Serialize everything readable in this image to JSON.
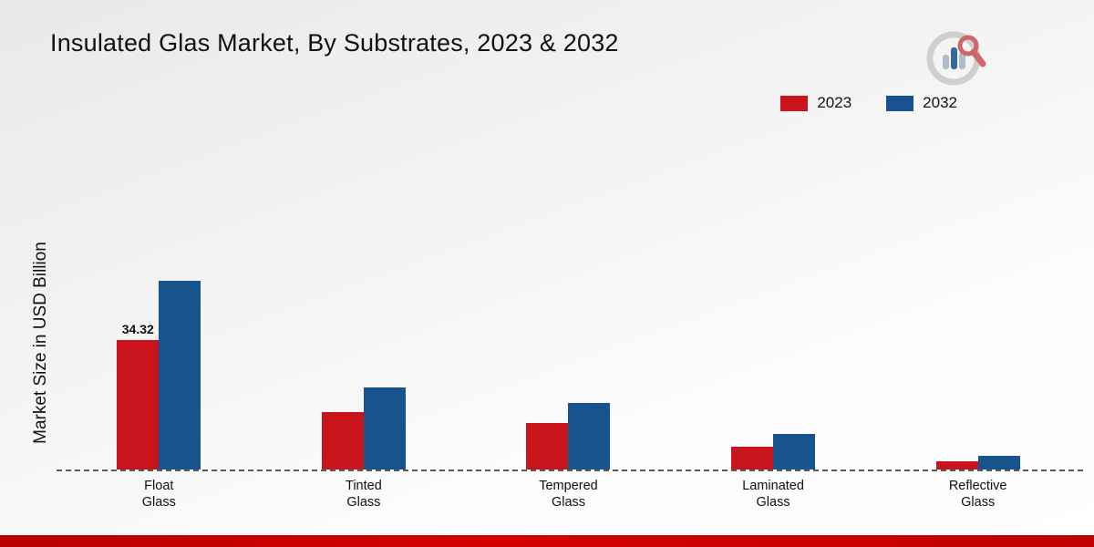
{
  "title": "Insulated Glas Market, By Substrates, 2023 & 2032",
  "y_axis_label": "Market Size in USD Billion",
  "legend": {
    "items": [
      {
        "label": "2023",
        "color": "#c9141b"
      },
      {
        "label": "2032",
        "color": "#16538f"
      }
    ],
    "position": "top-right"
  },
  "logo": {
    "name": "market-research-logo"
  },
  "chart_data": {
    "type": "bar",
    "title": "Insulated Glas Market, By Substrates, 2023 & 2032",
    "xlabel": "",
    "ylabel": "Market Size in USD Billion",
    "categories": [
      "Float Glass",
      "Tinted Glass",
      "Tempered Glass",
      "Laminated Glass",
      "Reflective Glass"
    ],
    "series": [
      {
        "name": "2023",
        "color": "#c9141b",
        "values": [
          34.32,
          15.2,
          12.3,
          6.0,
          2.2
        ]
      },
      {
        "name": "2032",
        "color": "#16538f",
        "values": [
          50.0,
          21.8,
          17.6,
          9.4,
          3.6
        ]
      }
    ],
    "shown_data_label": {
      "text": "34.32",
      "category_index": 0,
      "series_index": 0
    },
    "ylim": [
      0,
      55
    ],
    "grid": false,
    "baseline_style": "dashed",
    "legend_position": "top-right"
  }
}
